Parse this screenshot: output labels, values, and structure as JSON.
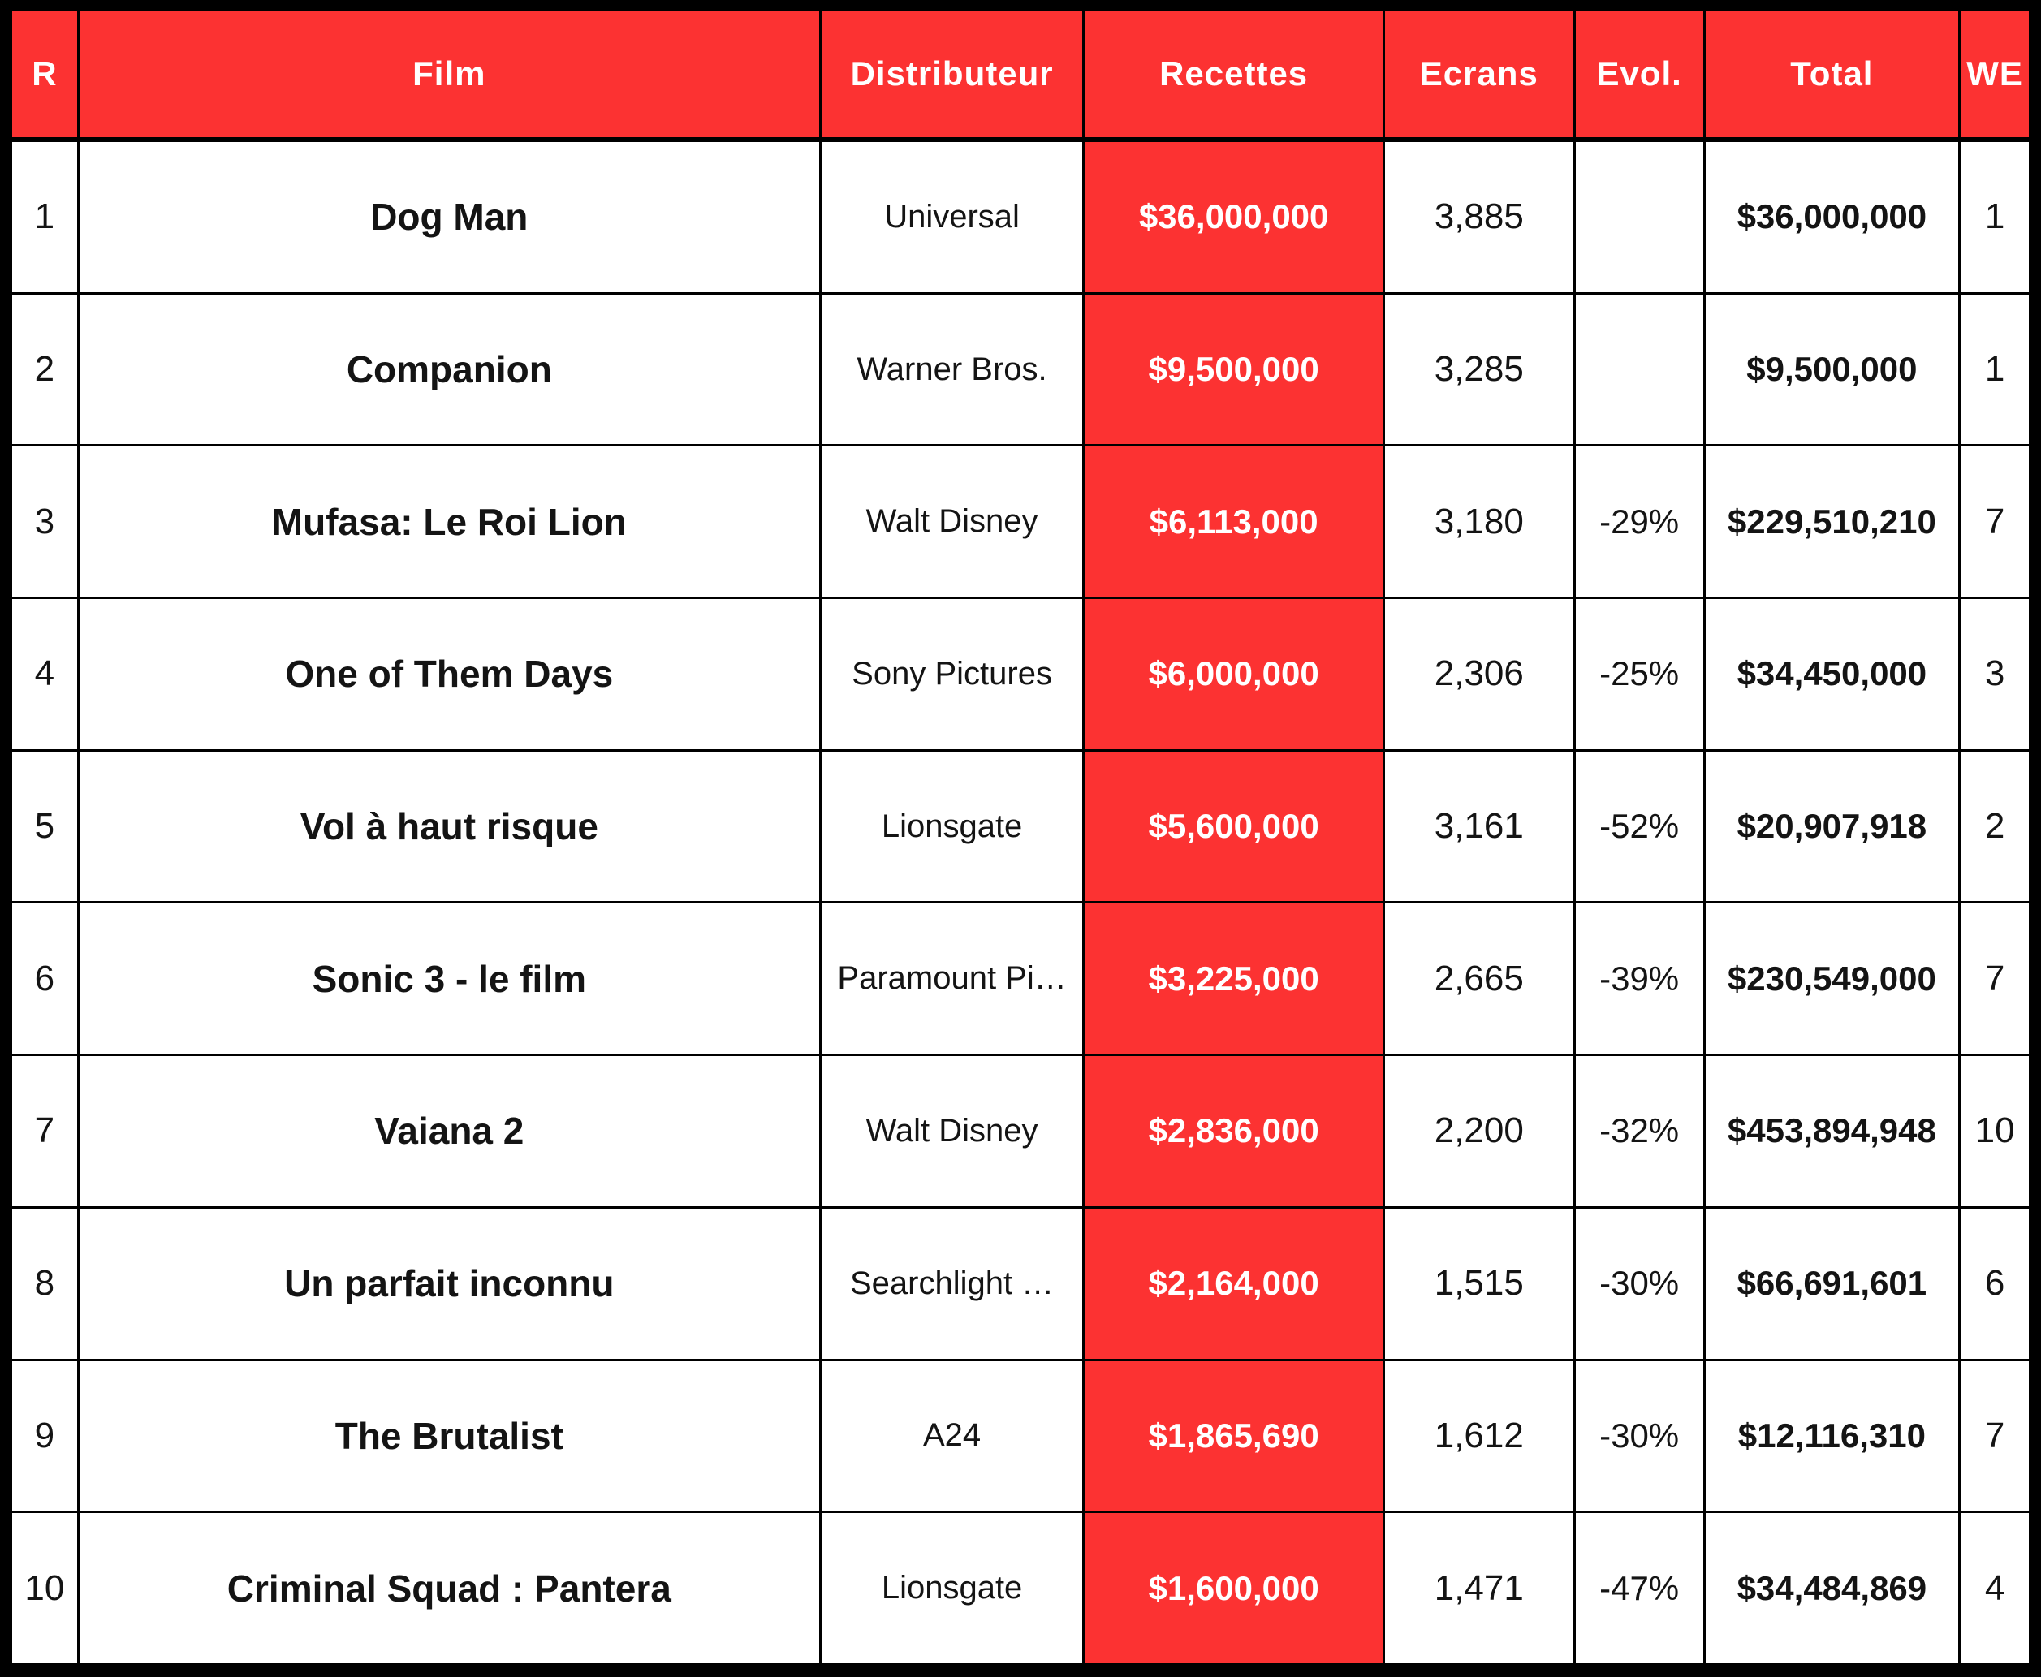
{
  "colors": {
    "header_bg": "#FC3232",
    "header_text": "#FFFFFF",
    "receipts_bg": "#FC3232",
    "grid": "#000000"
  },
  "chart_data": {
    "type": "table",
    "columns": [
      "R",
      "Film",
      "Distributeur",
      "Recettes",
      "Ecrans",
      "Evol.",
      "Total",
      "WE"
    ],
    "rows": [
      {
        "rank": "1",
        "film": "Dog Man",
        "distributor": "Universal",
        "receipts": "$36,000,000",
        "screens": "3,885",
        "evolution": "",
        "total": "$36,000,000",
        "weekends": "1"
      },
      {
        "rank": "2",
        "film": "Companion",
        "distributor": "Warner Bros.",
        "receipts": "$9,500,000",
        "screens": "3,285",
        "evolution": "",
        "total": "$9,500,000",
        "weekends": "1"
      },
      {
        "rank": "3",
        "film": "Mufasa: Le Roi Lion",
        "distributor": "Walt Disney",
        "receipts": "$6,113,000",
        "screens": "3,180",
        "evolution": "-29%",
        "total": "$229,510,210",
        "weekends": "7"
      },
      {
        "rank": "4",
        "film": "One of Them Days",
        "distributor": "Sony Pictures",
        "receipts": "$6,000,000",
        "screens": "2,306",
        "evolution": "-25%",
        "total": "$34,450,000",
        "weekends": "3"
      },
      {
        "rank": "5",
        "film": "Vol à haut risque",
        "distributor": "Lionsgate",
        "receipts": "$5,600,000",
        "screens": "3,161",
        "evolution": "-52%",
        "total": "$20,907,918",
        "weekends": "2"
      },
      {
        "rank": "6",
        "film": "Sonic 3 - le film",
        "distributor": "Paramount Pi…",
        "receipts": "$3,225,000",
        "screens": "2,665",
        "evolution": "-39%",
        "total": "$230,549,000",
        "weekends": "7"
      },
      {
        "rank": "7",
        "film": "Vaiana 2",
        "distributor": "Walt Disney",
        "receipts": "$2,836,000",
        "screens": "2,200",
        "evolution": "-32%",
        "total": "$453,894,948",
        "weekends": "10"
      },
      {
        "rank": "8",
        "film": "Un parfait inconnu",
        "distributor": "Searchlight …",
        "receipts": "$2,164,000",
        "screens": "1,515",
        "evolution": "-30%",
        "total": "$66,691,601",
        "weekends": "6"
      },
      {
        "rank": "9",
        "film": "The Brutalist",
        "distributor": "A24",
        "receipts": "$1,865,690",
        "screens": "1,612",
        "evolution": "-30%",
        "total": "$12,116,310",
        "weekends": "7"
      },
      {
        "rank": "10",
        "film": "Criminal Squad : Pantera",
        "distributor": "Lionsgate",
        "receipts": "$1,600,000",
        "screens": "1,471",
        "evolution": "-47%",
        "total": "$34,484,869",
        "weekends": "4"
      }
    ]
  }
}
